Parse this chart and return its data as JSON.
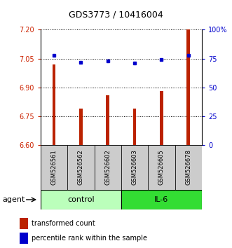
{
  "title": "GDS3773 / 10416004",
  "samples": [
    "GSM526561",
    "GSM526562",
    "GSM526602",
    "GSM526603",
    "GSM526605",
    "GSM526678"
  ],
  "red_values": [
    7.02,
    6.79,
    6.86,
    6.79,
    6.88,
    7.2
  ],
  "blue_values": [
    78,
    72,
    73,
    71,
    74,
    78
  ],
  "ylim_left": [
    6.6,
    7.2
  ],
  "ylim_right": [
    0,
    100
  ],
  "yticks_left": [
    6.6,
    6.75,
    6.9,
    7.05,
    7.2
  ],
  "yticks_right": [
    0,
    25,
    50,
    75,
    100
  ],
  "ytick_labels_right": [
    "0",
    "25",
    "50",
    "75",
    "100%"
  ],
  "bar_color": "#bb2200",
  "dot_color": "#0000cc",
  "bar_width": 0.12,
  "control_color": "#bbffbb",
  "il6_color": "#33dd33",
  "sample_box_color": "#cccccc",
  "agent_label": "agent",
  "legend_red": "transformed count",
  "legend_blue": "percentile rank within the sample",
  "title_fontsize": 9,
  "tick_fontsize": 7,
  "sample_fontsize": 6,
  "group_fontsize": 8,
  "legend_fontsize": 7
}
